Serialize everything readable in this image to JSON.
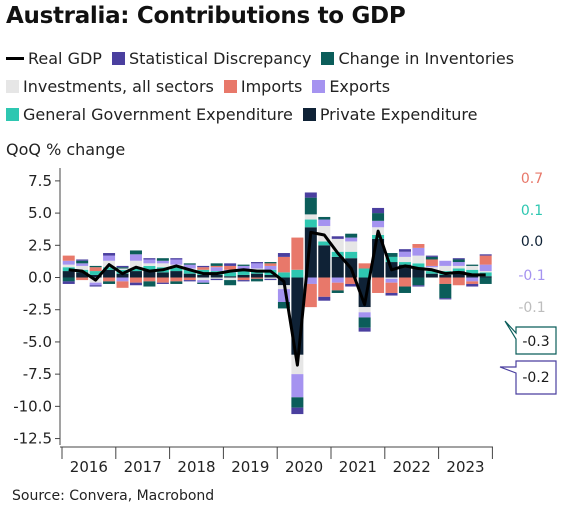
{
  "chart_data": {
    "type": "bar",
    "title": "Australia: Contributions to GDP",
    "ylabel": "QoQ % change",
    "source": "Source: Convera, Macrobond",
    "ylim": [
      -13,
      8.5
    ],
    "yticks": [
      7.5,
      5.0,
      2.5,
      0.0,
      -2.5,
      -5.0,
      -7.5,
      -10.0,
      -12.5
    ],
    "yticklabels": [
      "7.5",
      "5.0",
      "2.5",
      "0.0",
      "-2.5",
      "-5.0",
      "-7.5",
      "-10.0",
      "-12.5"
    ],
    "year_labels": [
      "2016",
      "2017",
      "2018",
      "2019",
      "2020",
      "2021",
      "2022",
      "2023"
    ],
    "legend_rows": [
      [
        0,
        1,
        2
      ],
      [
        3,
        4,
        5
      ],
      [
        6,
        7
      ]
    ],
    "legend": [
      {
        "label": "Real GDP",
        "color": "#000000",
        "kind": "line"
      },
      {
        "label": "Statistical Discrepancy",
        "color": "#4a3f9f",
        "kind": "bar"
      },
      {
        "label": "Change in Inventories",
        "color": "#0b5d5a",
        "kind": "bar"
      },
      {
        "label": "Investments, all sectors",
        "color": "#e6e6e6",
        "kind": "bar"
      },
      {
        "label": "Imports",
        "color": "#e8786a",
        "kind": "bar"
      },
      {
        "label": "Exports",
        "color": "#a593f0",
        "kind": "bar"
      },
      {
        "label": "General Government Expenditure",
        "color": "#2ec7b1",
        "kind": "bar"
      },
      {
        "label": "Private Expenditure",
        "color": "#0f2236",
        "kind": "bar"
      }
    ],
    "quarters": [
      "2016Q1",
      "2016Q2",
      "2016Q3",
      "2016Q4",
      "2017Q1",
      "2017Q2",
      "2017Q3",
      "2017Q4",
      "2018Q1",
      "2018Q2",
      "2018Q3",
      "2018Q4",
      "2019Q1",
      "2019Q2",
      "2019Q3",
      "2019Q4",
      "2020Q1",
      "2020Q2",
      "2020Q3",
      "2020Q4",
      "2021Q1",
      "2021Q2",
      "2021Q3",
      "2021Q4",
      "2022Q1",
      "2022Q2",
      "2022Q3",
      "2022Q4",
      "2023Q1",
      "2023Q2",
      "2023Q3",
      "2023Q4"
    ],
    "series": [
      {
        "name": "Private Expenditure",
        "color": "#0f2236",
        "values": [
          0.5,
          0.4,
          0.2,
          0.6,
          0.3,
          0.5,
          0.6,
          0.4,
          0.5,
          0.3,
          0.2,
          0.2,
          0.1,
          0.2,
          0.3,
          0.2,
          -0.6,
          -6.0,
          3.9,
          2.5,
          1.6,
          1.5,
          -2.3,
          3.0,
          1.2,
          1.0,
          0.8,
          0.3,
          0.2,
          0.5,
          0.2,
          0.1
        ]
      },
      {
        "name": "General Government Expenditure",
        "color": "#2ec7b1",
        "values": [
          0.3,
          0.2,
          0.3,
          0.2,
          0.3,
          0.2,
          0.3,
          0.4,
          0.3,
          0.3,
          0.4,
          0.3,
          0.3,
          0.4,
          0.3,
          0.4,
          0.4,
          0.6,
          0.6,
          0.3,
          0.4,
          0.5,
          0.7,
          0.3,
          0.4,
          0.2,
          0.3,
          0.2,
          0.3,
          0.2,
          0.4,
          0.3
        ]
      },
      {
        "name": "Investments, all sectors",
        "color": "#e6e6e6",
        "values": [
          0.2,
          0.3,
          -0.4,
          0.5,
          0.1,
          0.6,
          0.2,
          0.3,
          0.2,
          0.1,
          -0.2,
          -0.1,
          -0.2,
          0.0,
          0.1,
          -0.1,
          -0.3,
          -1.5,
          0.4,
          1.2,
          1.0,
          0.8,
          -0.4,
          0.6,
          -0.1,
          0.4,
          0.6,
          0.3,
          0.4,
          0.2,
          0.3,
          0.1
        ]
      },
      {
        "name": "Exports",
        "color": "#a593f0",
        "values": [
          0.3,
          0.2,
          -0.2,
          0.4,
          -0.3,
          0.5,
          0.3,
          0.2,
          0.4,
          0.3,
          -0.2,
          0.3,
          0.2,
          0.3,
          0.4,
          0.3,
          -1.0,
          -1.8,
          -0.5,
          0.5,
          -0.4,
          0.3,
          -0.4,
          0.5,
          -0.3,
          0.4,
          0.6,
          0.1,
          0.4,
          0.3,
          -0.3,
          0.5
        ]
      },
      {
        "name": "Imports",
        "color": "#e8786a",
        "values": [
          0.4,
          -0.2,
          0.3,
          -0.3,
          -0.5,
          -0.4,
          -0.3,
          -0.4,
          -0.3,
          -0.2,
          0.2,
          0.1,
          0.3,
          -0.2,
          -0.1,
          0.2,
          1.2,
          2.5,
          -1.8,
          -1.5,
          -0.6,
          -0.5,
          0.4,
          -1.2,
          -0.8,
          -0.7,
          0.3,
          0.5,
          -0.5,
          -0.6,
          -0.2,
          0.7
        ]
      },
      {
        "name": "Change in Inventories",
        "color": "#0b5d5a",
        "values": [
          -0.3,
          0.2,
          0.1,
          -0.2,
          0.1,
          0.3,
          -0.4,
          0.2,
          -0.2,
          0.1,
          -0.1,
          0.2,
          -0.4,
          0.1,
          -0.2,
          0.1,
          -0.5,
          -0.8,
          1.3,
          0.2,
          -0.2,
          0.3,
          -0.8,
          0.6,
          0.3,
          -0.5,
          -0.6,
          0.2,
          -1.1,
          0.2,
          0.1,
          -0.5
        ]
      },
      {
        "name": "Statistical Discrepancy",
        "color": "#4a3f9f",
        "values": [
          -0.2,
          0.1,
          -0.1,
          0.2,
          0.1,
          -0.2,
          0.1,
          -0.1,
          0.1,
          -0.1,
          0.1,
          -0.1,
          0.2,
          -0.1,
          0.1,
          -0.1,
          0.3,
          -0.5,
          0.4,
          -0.3,
          0.2,
          -0.2,
          -0.3,
          0.4,
          -0.2,
          0.2,
          -0.1,
          0.1,
          -0.1,
          0.1,
          -0.2,
          0.1
        ]
      }
    ],
    "real_gdp": [
      0.6,
      0.5,
      -0.2,
      1.0,
      0.3,
      0.8,
      0.5,
      0.6,
      0.9,
      0.6,
      0.3,
      0.3,
      0.5,
      0.6,
      0.5,
      0.5,
      -0.3,
      -6.8,
      3.5,
      3.3,
      1.9,
      0.7,
      -2.1,
      3.6,
      0.6,
      0.9,
      0.7,
      0.6,
      0.3,
      0.4,
      0.2,
      0.2
    ],
    "side_values": [
      {
        "label": "0.7",
        "color": "#e8786a"
      },
      {
        "label": "0.1",
        "color": "#2ec7b1"
      },
      {
        "label": "0.0",
        "color": "#0f2236"
      },
      {
        "label": "-0.1",
        "color": "#a593f0"
      },
      {
        "label": "-0.1",
        "color": "#bdbdbd"
      },
      {
        "label": "-0.3",
        "color": "#0b5d5a"
      },
      {
        "label": "-0.2",
        "color": "#4a3f9f"
      }
    ]
  }
}
